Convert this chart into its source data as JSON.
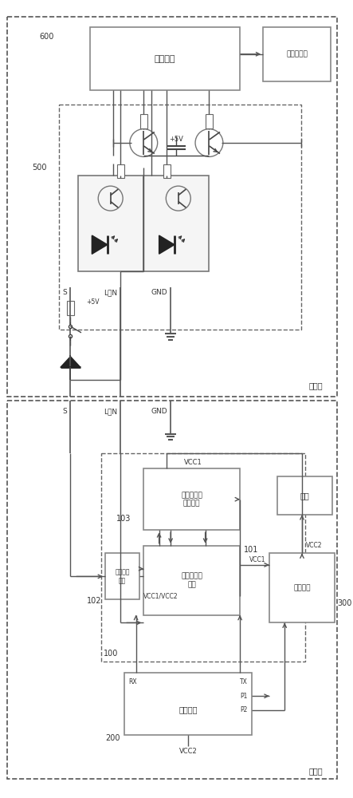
{
  "bg_color": "#ffffff",
  "line_color": "#555555",
  "box_color": "#888888",
  "dashed_color": "#555555",
  "indoor_label": "室内机",
  "outdoor_label": "室外机",
  "indoor_chip_label": "主控芯片",
  "indoor_load_label": "室内机负载",
  "block_500": "500",
  "block_600": "600",
  "block_100": "100",
  "block_200": "200",
  "block_300": "300",
  "block_101": "101",
  "block_102": "102",
  "block_103": "103",
  "module_comm": "电流环通信\n模块",
  "module_ctrl": "电流环调节\n控制模块",
  "module_signal": "信号隔离\n模块",
  "module_power": "电源电路",
  "module_load": "负载",
  "module_master": "主控制器",
  "label_S": "S",
  "label_LN": "L或N",
  "label_GND": "GND",
  "label_VCC1": "VCC1",
  "label_VCC2": "VCC2",
  "label_VCC1VCC2": "VCC1/VCC2",
  "label_5V": "+5V",
  "label_RX": "RX",
  "label_TX": "TX",
  "label_P1": "P1",
  "label_P2": "P2"
}
